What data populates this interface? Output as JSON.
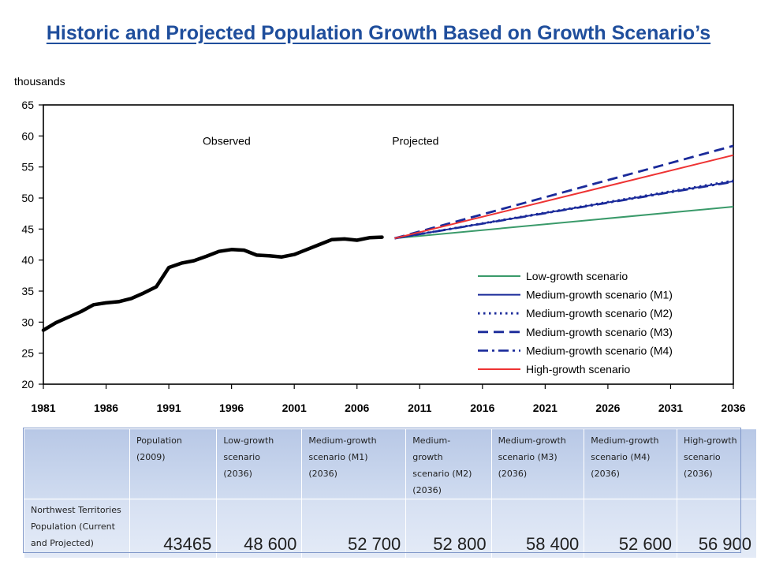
{
  "title": "Historic and Projected Population Growth Based on Growth Scenario’s",
  "chart_data": {
    "type": "line",
    "y_unit_label": "thousands",
    "ylim": [
      20,
      65
    ],
    "y_ticks": [
      "20",
      "25",
      "30",
      "35",
      "40",
      "45",
      "50",
      "55",
      "60",
      "65"
    ],
    "xlim": [
      1981,
      2036
    ],
    "x_ticks": [
      "1981",
      "1986",
      "1991",
      "1996",
      "2001",
      "2006",
      "2011",
      "2016",
      "2021",
      "2026",
      "2031",
      "2036"
    ],
    "annotations": {
      "observed": "Observed",
      "projected": "Projected"
    },
    "grid": false,
    "legend_position": "bottom-right",
    "observed": {
      "color": "#000000",
      "x": [
        1981,
        1982,
        1983,
        1984,
        1985,
        1986,
        1987,
        1988,
        1989,
        1990,
        1991,
        1992,
        1993,
        1994,
        1995,
        1996,
        1997,
        1998,
        1999,
        2000,
        2001,
        2002,
        2003,
        2004,
        2005,
        2006,
        2007,
        2008
      ],
      "y": [
        28.7,
        29.9,
        30.8,
        31.7,
        32.8,
        33.1,
        33.3,
        33.8,
        34.7,
        35.7,
        38.8,
        39.5,
        39.9,
        40.6,
        41.4,
        41.7,
        41.6,
        40.8,
        40.7,
        40.5,
        40.9,
        41.7,
        42.5,
        43.3,
        43.4,
        43.2,
        43.6,
        43.7
      ]
    },
    "series": [
      {
        "name": "Low-growth scenario",
        "style": "solid",
        "color": "#3a9a6a",
        "x": [
          2009,
          2036
        ],
        "y": [
          43.5,
          48.6
        ]
      },
      {
        "name": "Medium-growth scenario (M1)",
        "style": "solid",
        "color": "#1a2a9a",
        "x": [
          2009,
          2036
        ],
        "y": [
          43.5,
          52.7
        ]
      },
      {
        "name": "Medium-growth scenario (M2)",
        "style": "dotted",
        "color": "#1a2a9a",
        "x": [
          2009,
          2036
        ],
        "y": [
          43.5,
          52.8
        ]
      },
      {
        "name": "Medium-growth scenario (M3)",
        "style": "dashed",
        "color": "#1a2a9a",
        "x": [
          2009,
          2036
        ],
        "y": [
          43.5,
          58.4
        ]
      },
      {
        "name": "Medium-growth scenario (M4)",
        "style": "dashdot",
        "color": "#1a2a9a",
        "x": [
          2009,
          2036
        ],
        "y": [
          43.5,
          52.6
        ]
      },
      {
        "name": "High-growth scenario",
        "style": "solid",
        "color": "#ee3333",
        "x": [
          2009,
          2036
        ],
        "y": [
          43.5,
          56.9
        ]
      }
    ]
  },
  "table": {
    "headers": [
      [
        "Population",
        "(2009)"
      ],
      [
        "Low-growth",
        "scenario",
        "(2036)"
      ],
      [
        "Medium-growth",
        "scenario (M1)",
        "(2036)"
      ],
      [
        "Medium-",
        "growth",
        "scenario (M2)",
        "(2036)"
      ],
      [
        "Medium-growth",
        "scenario (M3)",
        "(2036)"
      ],
      [
        "Medium-growth",
        "scenario (M4)",
        "(2036)"
      ],
      [
        "High-growth",
        "scenario",
        "(2036)"
      ]
    ],
    "row_label": [
      "Northwest Territories",
      "Population  (Current",
      "and Projected)"
    ],
    "values": [
      "43465",
      "48 600",
      "52 700",
      "52 800",
      "58 400",
      "52 600",
      "56 900"
    ]
  }
}
